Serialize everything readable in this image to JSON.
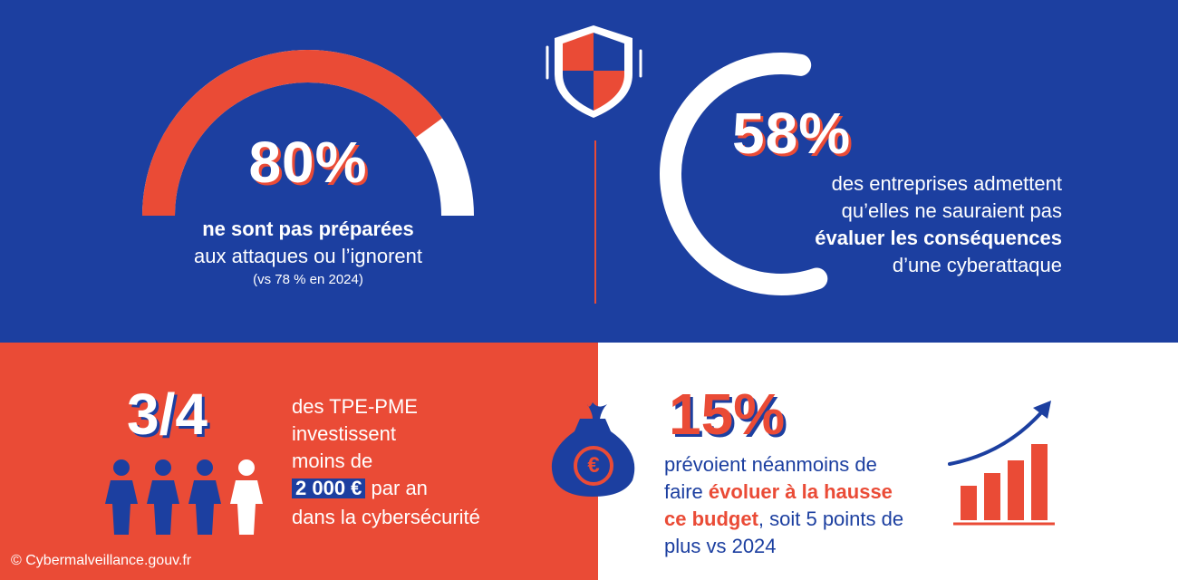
{
  "stat_80": {
    "value": "80%",
    "line1": "ne sont pas préparées",
    "line2": "aux attaques ou l’ignorent",
    "line3": "(vs 78 % en 2024)",
    "gauge_fraction": 0.8
  },
  "stat_58": {
    "value": "58%",
    "line1": "des entreprises admettent",
    "line2": "qu’elles ne sauraient pas",
    "line3_bold": "évaluer les conséquences",
    "line4": "d’une cyberattaque",
    "ring_fraction": 0.58
  },
  "stat_34": {
    "value": "3/4",
    "line1": "des TPE-PME",
    "line2": "investissent",
    "line3": "moins de",
    "amount": "2 000 €",
    "line4_rest": "par an",
    "line5": "dans la cybersécurité",
    "people_total": 4,
    "people_highlighted": 3
  },
  "stat_15": {
    "value": "15%",
    "line1": "prévoient néanmoins de",
    "line2_start": "faire ",
    "line2_bold": "évoluer à la hausse",
    "line3_bold": "ce budget",
    "line3_rest": ", soit 5 points de",
    "line4": "plus vs 2024"
  },
  "money_bag": {
    "symbol": "€"
  },
  "credit": "© Cybermalveillance.gouv.fr",
  "colors": {
    "navy": "#1c3fa0",
    "red": "#ea4b36",
    "white": "#ffffff"
  }
}
